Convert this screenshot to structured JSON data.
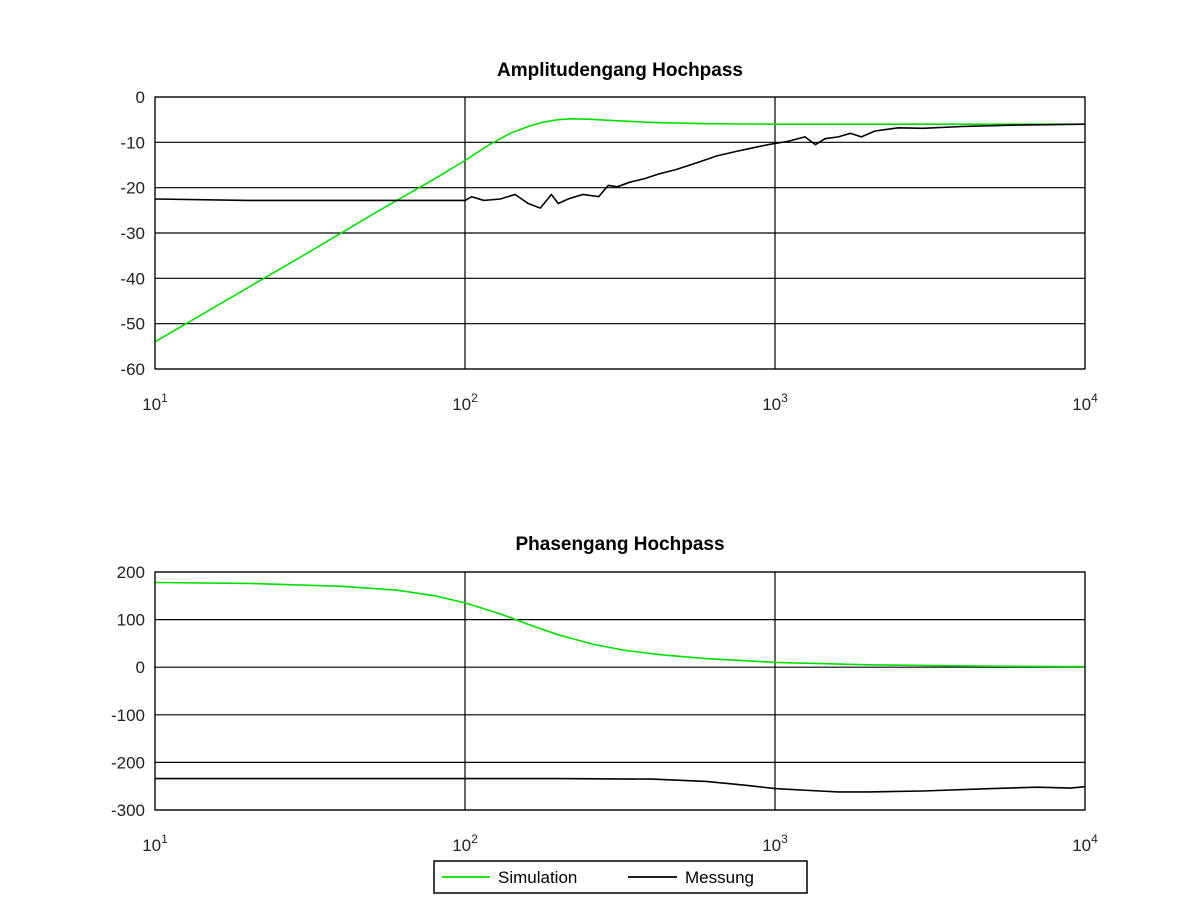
{
  "chart_data": [
    {
      "type": "line",
      "title": "Amplitudengang Hochpass",
      "xscale": "log",
      "xlim": [
        10,
        10000
      ],
      "ylim": [
        -60,
        0
      ],
      "xticks": [
        10,
        100,
        1000,
        10000
      ],
      "xtick_labels": [
        {
          "base": "10",
          "exp": "1"
        },
        {
          "base": "10",
          "exp": "2"
        },
        {
          "base": "10",
          "exp": "3"
        },
        {
          "base": "10",
          "exp": "4"
        }
      ],
      "yticks": [
        0,
        -10,
        -20,
        -30,
        -40,
        -50,
        -60
      ],
      "ytick_labels": [
        "0",
        "-10",
        "-20",
        "-30",
        "-40",
        "-50",
        "-60"
      ],
      "grid": true,
      "series": [
        {
          "name": "Simulation",
          "color": "#00e000",
          "x": [
            10,
            20,
            30,
            50,
            80,
            100,
            120,
            140,
            160,
            180,
            200,
            220,
            250,
            300,
            400,
            600,
            1000,
            2000,
            5000,
            9000,
            10000
          ],
          "y": [
            -54,
            -42,
            -35,
            -26,
            -18,
            -14,
            -10.5,
            -8,
            -6.5,
            -5.5,
            -5,
            -4.8,
            -4.9,
            -5.2,
            -5.6,
            -5.9,
            -6,
            -6,
            -6,
            -6,
            -6
          ]
        },
        {
          "name": "Messung",
          "color": "#000000",
          "x": [
            10,
            20,
            40,
            60,
            80,
            100,
            105,
            115,
            130,
            145,
            160,
            175,
            190,
            200,
            215,
            240,
            270,
            290,
            310,
            340,
            380,
            420,
            480,
            560,
            650,
            750,
            850,
            950,
            1100,
            1250,
            1350,
            1450,
            1600,
            1750,
            1900,
            2100,
            2500,
            3000,
            4000,
            6000,
            10000
          ],
          "y": [
            -22.5,
            -22.8,
            -22.8,
            -22.8,
            -22.8,
            -22.8,
            -22,
            -22.8,
            -22.5,
            -21.5,
            -23.5,
            -24.5,
            -21.5,
            -23.5,
            -22.5,
            -21.5,
            -22,
            -19.5,
            -19.8,
            -18.8,
            -18,
            -17,
            -16,
            -14.5,
            -13,
            -12,
            -11.2,
            -10.5,
            -9.8,
            -8.8,
            -10.5,
            -9.2,
            -8.8,
            -8,
            -8.8,
            -7.5,
            -6.8,
            -6.9,
            -6.5,
            -6.2,
            -6
          ]
        }
      ]
    },
    {
      "type": "line",
      "title": "Phasengang Hochpass",
      "xscale": "log",
      "xlim": [
        10,
        10000
      ],
      "ylim": [
        -300,
        200
      ],
      "xticks": [
        10,
        100,
        1000,
        10000
      ],
      "xtick_labels": [
        {
          "base": "10",
          "exp": "1"
        },
        {
          "base": "10",
          "exp": "2"
        },
        {
          "base": "10",
          "exp": "3"
        },
        {
          "base": "10",
          "exp": "4"
        }
      ],
      "yticks": [
        200,
        100,
        0,
        -100,
        -200,
        -300
      ],
      "ytick_labels": [
        "200",
        "100",
        "0",
        "-100",
        "-200",
        "-300"
      ],
      "grid": true,
      "series": [
        {
          "name": "Simulation",
          "color": "#00e000",
          "x": [
            10,
            20,
            40,
            60,
            80,
            100,
            130,
            160,
            200,
            260,
            330,
            430,
            600,
            1000,
            2000,
            5000,
            10000
          ],
          "y": [
            178,
            176,
            170,
            162,
            150,
            135,
            112,
            90,
            68,
            48,
            35,
            26,
            18,
            10,
            5,
            2,
            1
          ]
        },
        {
          "name": "Messung",
          "color": "#000000",
          "x": [
            10,
            50,
            100,
            200,
            400,
            600,
            800,
            1000,
            1300,
            1600,
            2000,
            3000,
            5000,
            7000,
            9000,
            10000
          ],
          "y": [
            -234,
            -234,
            -234,
            -234,
            -235,
            -240,
            -248,
            -255,
            -259,
            -262,
            -262,
            -260,
            -255,
            -252,
            -254,
            -251
          ]
        }
      ]
    }
  ],
  "legend": {
    "placement": "bottom-center",
    "entries": [
      {
        "label": "Simulation",
        "color": "#00e000"
      },
      {
        "label": "Messung",
        "color": "#000000"
      }
    ]
  }
}
